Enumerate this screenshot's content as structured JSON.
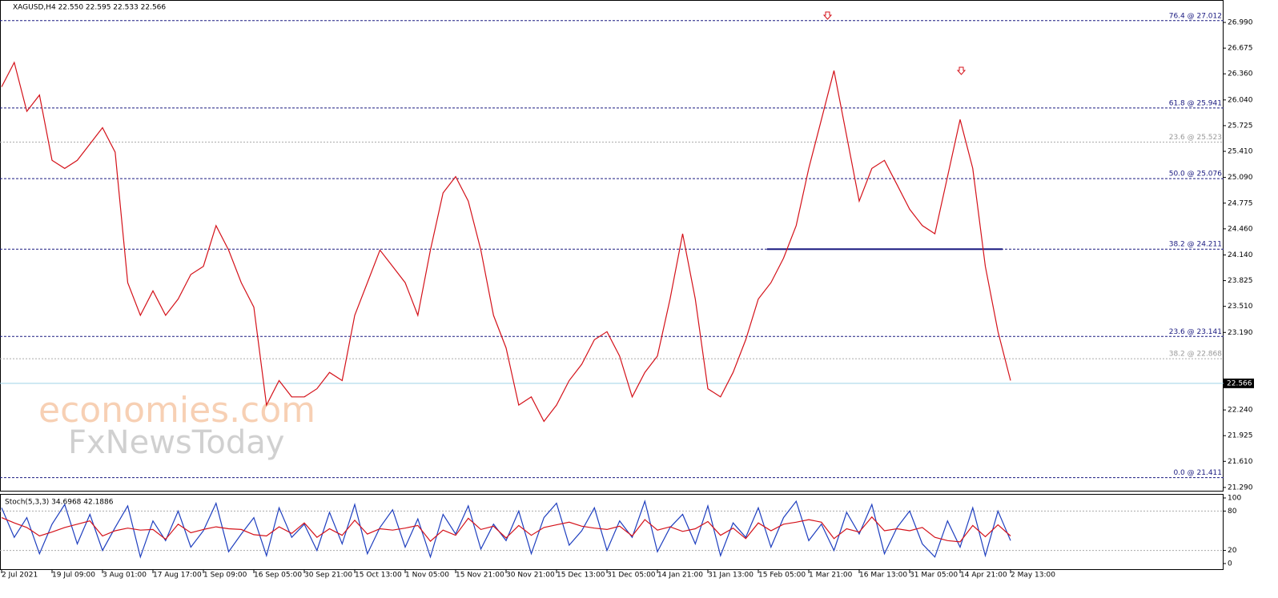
{
  "chart_data": [
    {
      "type": "line",
      "title": "XAGUSD,H4 22.550 22.595 22.533 22.566",
      "watermark": [
        "economies.com",
        "FxNewsToday"
      ],
      "categories": [
        "2 Jul 2021",
        null,
        null,
        null,
        "19 Jul 09:00",
        null,
        null,
        null,
        "3 Aug 01:00",
        null,
        null,
        null,
        "17 Aug 17:00",
        null,
        null,
        null,
        "1 Sep 09:00",
        null,
        null,
        null,
        "16 Sep 05:00",
        null,
        null,
        null,
        "30 Sep 21:00",
        null,
        null,
        null,
        "15 Oct 13:00",
        null,
        null,
        null,
        "1 Nov 05:00",
        null,
        null,
        null,
        "15 Nov 21:00",
        null,
        null,
        null,
        "30 Nov 21:00",
        null,
        null,
        null,
        "15 Dec 13:00",
        null,
        null,
        null,
        "31 Dec 05:00",
        null,
        null,
        null,
        "14 Jan 21:00",
        null,
        null,
        null,
        "31 Jan 13:00",
        null,
        null,
        null,
        "15 Feb 05:00",
        null,
        null,
        null,
        "1 Mar 21:00",
        null,
        null,
        null,
        "16 Mar 13:00",
        null,
        null,
        null,
        "31 Mar 05:00",
        null,
        null,
        null,
        "14 Apr 21:00",
        null,
        null,
        null,
        "2 May 13:00"
      ],
      "series": [
        {
          "color": "#d4121a",
          "values": [
            26.2,
            26.5,
            25.9,
            26.1,
            25.3,
            25.2,
            25.3,
            25.5,
            25.7,
            25.4,
            23.8,
            23.4,
            23.7,
            23.4,
            23.6,
            23.9,
            24.0,
            24.5,
            24.2,
            23.8,
            23.5,
            22.3,
            22.6,
            22.4,
            22.4,
            22.5,
            22.7,
            22.6,
            23.4,
            23.8,
            24.2,
            24.0,
            23.8,
            23.4,
            24.2,
            24.9,
            25.1,
            24.8,
            24.2,
            23.4,
            23.0,
            22.3,
            22.4,
            22.1,
            22.3,
            22.6,
            22.8,
            23.1,
            23.2,
            22.9,
            22.4,
            22.7,
            22.9,
            23.6,
            24.4,
            23.6,
            22.5,
            22.4,
            22.7,
            23.1,
            23.6,
            23.8,
            24.1,
            24.5,
            25.2,
            25.8,
            26.4,
            25.6,
            24.8,
            25.2,
            25.3,
            25.0,
            24.7,
            24.5,
            24.4,
            25.1,
            25.8,
            25.2,
            24.0,
            23.2,
            22.6
          ]
        }
      ],
      "ylim": [
        21.24,
        27.265
      ],
      "yticks": [
        {
          "value": 26.99,
          "label": "26.990"
        },
        26.675,
        {
          "value": 26.36,
          "label": "26.360"
        },
        {
          "value": 26.04,
          "label": "26.040"
        },
        25.725,
        {
          "value": 25.41,
          "label": "25.410"
        },
        {
          "value": 25.09,
          "label": "25.090"
        },
        24.775,
        {
          "value": 24.46,
          "label": "24.460"
        },
        {
          "value": 24.14,
          "label": "24.140"
        },
        23.825,
        {
          "value": 23.51,
          "label": "23.510"
        },
        {
          "value": 23.19,
          "label": "23.190"
        },
        {
          "value": 22.24,
          "label": "22.240"
        },
        21.925,
        {
          "value": 21.61,
          "label": "21.610"
        },
        {
          "value": 21.29,
          "label": "21.290"
        }
      ],
      "current_price": 22.566,
      "fib_levels": [
        {
          "label": "76.4 @ 27.012",
          "value": 27.012,
          "style": "major"
        },
        {
          "label": "61.8 @ 25.941",
          "value": 25.941,
          "style": "major"
        },
        {
          "label": "23.6 @ 25.523",
          "value": 25.523,
          "style": "minor"
        },
        {
          "label": "50.0 @ 25.076",
          "value": 25.076,
          "style": "major"
        },
        {
          "label": "38.2 @ 24.211",
          "value": 24.211,
          "style": "major"
        },
        {
          "label": "23.6 @ 23.141",
          "value": 23.141,
          "style": "major"
        },
        {
          "label": "38.2 @ 22.868",
          "value": 22.868,
          "style": "minor"
        },
        {
          "label": "0.0 @ 21.411",
          "value": 21.411,
          "style": "major"
        }
      ],
      "support": 24.211
    },
    {
      "type": "line",
      "title": "Stoch(5,3,3) 34.6968 42.1886",
      "series": [
        {
          "color": "#1f3fbf",
          "values": [
            85,
            40,
            70,
            15,
            60,
            90,
            30,
            75,
            20,
            55,
            88,
            10,
            65,
            35,
            80,
            25,
            50,
            92,
            18,
            45,
            70,
            12,
            85,
            40,
            60,
            20,
            78,
            30,
            90,
            15,
            55,
            82,
            25,
            68,
            10,
            75,
            45,
            88,
            22,
            60,
            35,
            80,
            15,
            70,
            92,
            28,
            50,
            85,
            20,
            65,
            40,
            95,
            18,
            55,
            75,
            30,
            88,
            12,
            62,
            40,
            85,
            25,
            70,
            95,
            35,
            60,
            20,
            78,
            45,
            90,
            15,
            55,
            80,
            30,
            10,
            65,
            25,
            85,
            12,
            80,
            35
          ]
        },
        {
          "color": "#d4121a",
          "values": [
            70,
            62,
            55,
            42,
            48,
            55,
            60,
            65,
            42,
            50,
            54,
            51,
            52,
            37,
            60,
            47,
            52,
            56,
            53,
            52,
            44,
            42,
            56,
            46,
            62,
            40,
            53,
            43,
            66,
            45,
            53,
            51,
            54,
            58,
            34,
            51,
            43,
            69,
            52,
            57,
            39,
            58,
            43,
            55,
            59,
            63,
            57,
            54,
            52,
            57,
            42,
            67,
            51,
            56,
            49,
            53,
            64,
            43,
            54,
            38,
            62,
            50,
            60,
            63,
            67,
            63,
            38,
            53,
            48,
            71,
            50,
            53,
            50,
            55,
            40,
            35,
            33,
            58,
            41,
            59,
            42
          ]
        }
      ],
      "ylim": [
        -9.8,
        104.9
      ],
      "yticks": [
        100,
        80,
        20,
        0
      ],
      "levels": [
        80,
        20
      ]
    }
  ]
}
